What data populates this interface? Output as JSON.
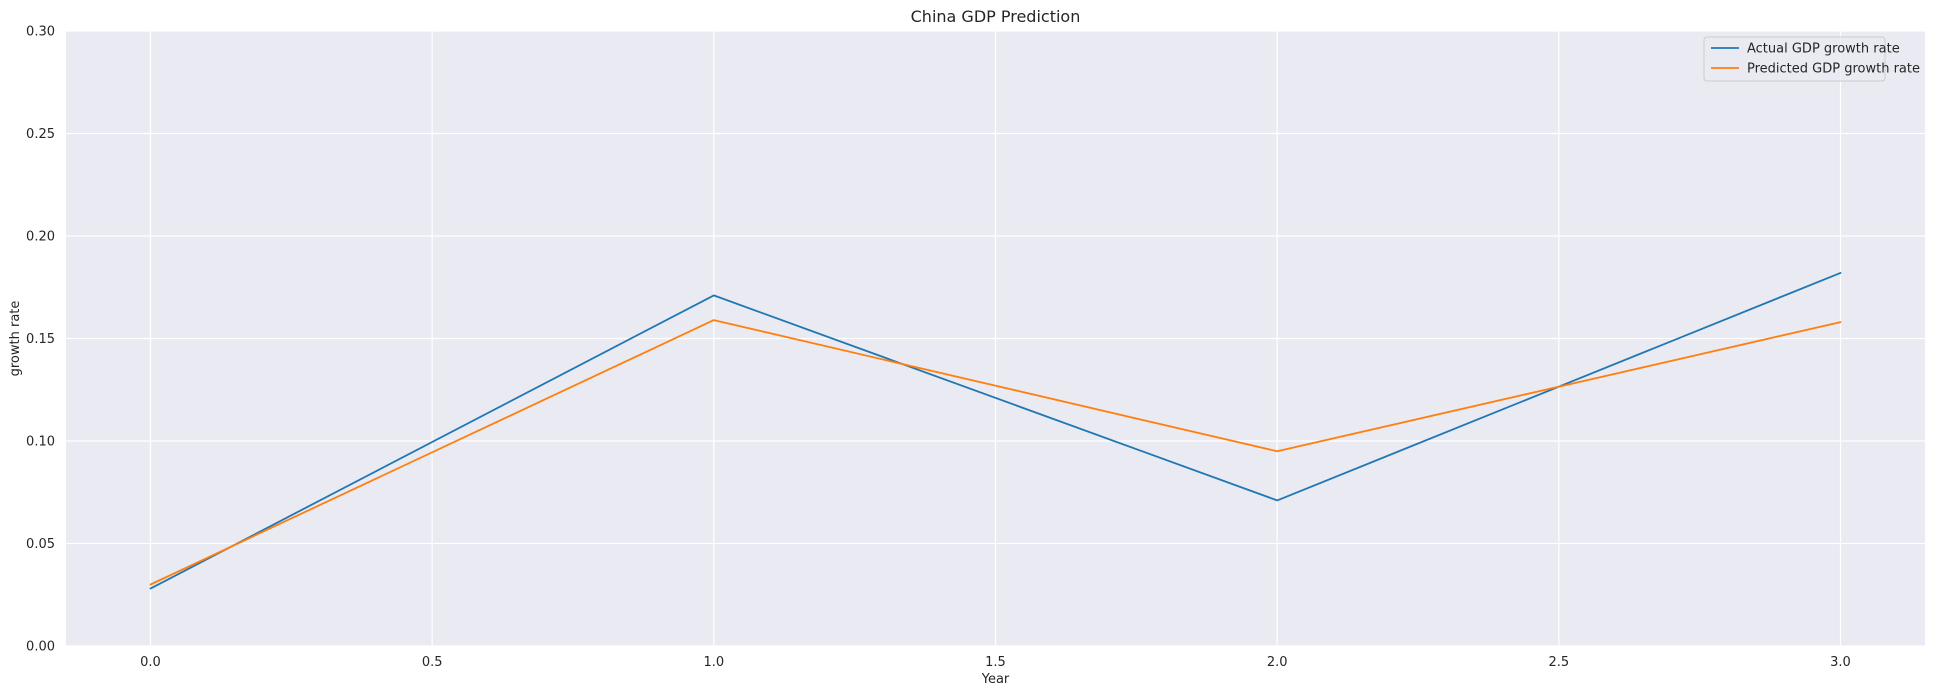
{
  "chart_data": {
    "type": "line",
    "title": "China GDP Prediction",
    "xlabel": "Year",
    "ylabel": "growth rate",
    "xlim": [
      -0.15,
      3.15
    ],
    "ylim": [
      0.0,
      0.3
    ],
    "xticks": [
      0.0,
      0.5,
      1.0,
      1.5,
      2.0,
      2.5,
      3.0
    ],
    "xtick_labels": [
      "0.0",
      "0.5",
      "1.0",
      "1.5",
      "2.0",
      "2.5",
      "3.0"
    ],
    "yticks": [
      0.0,
      0.05,
      0.1,
      0.15,
      0.2,
      0.25,
      0.3
    ],
    "ytick_labels": [
      "0.00",
      "0.05",
      "0.10",
      "0.15",
      "0.20",
      "0.25",
      "0.30"
    ],
    "grid": true,
    "legend_position": "top-right",
    "background_color": "#eaeaf2",
    "series": [
      {
        "name": "Actual GDP growth rate",
        "color": "#1f77b4",
        "x": [
          0,
          1,
          2,
          3
        ],
        "y": [
          0.028,
          0.171,
          0.071,
          0.182
        ]
      },
      {
        "name": "Predicted GDP growth rate",
        "color": "#ff7f0e",
        "x": [
          0,
          1,
          2,
          3
        ],
        "y": [
          0.03,
          0.159,
          0.095,
          0.158
        ]
      }
    ]
  }
}
